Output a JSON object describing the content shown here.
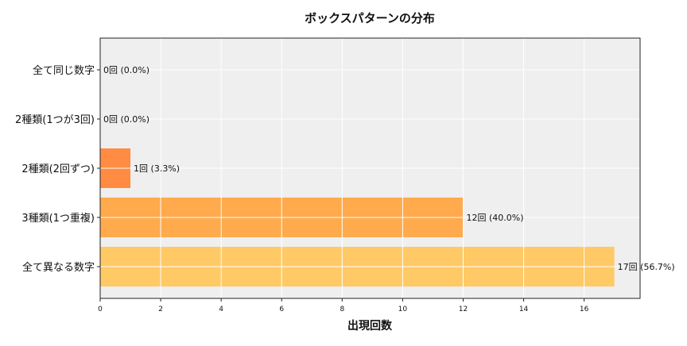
{
  "chart_data": {
    "type": "bar",
    "orientation": "horizontal",
    "title": "ボックスパターンの分布",
    "xlabel": "出現回数",
    "ylabel": "",
    "categories": [
      "全て同じ数字",
      "2種類(1つが3回)",
      "2種類(2回ずつ)",
      "3種類(1つ重複)",
      "全て異なる数字"
    ],
    "values": [
      0,
      0,
      1,
      12,
      17
    ],
    "data_labels": [
      "0回 (0.0%)",
      "0回 (0.0%)",
      "1回 (3.3%)",
      "12回 (40.0%)",
      "17回 (56.7%)"
    ],
    "colors": [
      "#ff8c42",
      "#ff8c42",
      "#ff8c42",
      "#ffaa4c",
      "#ffc966"
    ],
    "xlim": [
      0,
      17.85
    ],
    "xticks": [
      0,
      2,
      4,
      6,
      8,
      10,
      12,
      14,
      16
    ],
    "grid": true,
    "background": "#efefef"
  }
}
